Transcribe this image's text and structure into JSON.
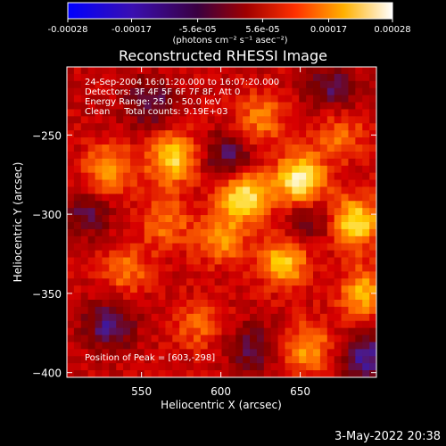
{
  "colorbar": {
    "tick_values": [
      -0.00028,
      -0.00017,
      -5.6e-05,
      5.6e-05,
      0.00017,
      0.00028
    ],
    "tick_labels": [
      "-0.00028",
      "-0.00017",
      "-5.6e-05",
      "5.6e-05",
      "0.00017",
      "0.00028"
    ],
    "unit_label": "(photons cm⁻² s⁻¹ asec⁻²)",
    "range": [
      -0.00028,
      0.00028
    ],
    "colormap": [
      "#0000ff",
      "#4a1a8c",
      "#7a0000",
      "#d80000",
      "#ff6a00",
      "#ffd200",
      "#ffffff"
    ]
  },
  "chart_data": {
    "type": "heatmap",
    "title": "Reconstructed RHESSI Image",
    "xlabel": "Heliocentric X (arcsec)",
    "ylabel": "Heliocentric Y (arcsec)",
    "xlim": [
      503,
      698
    ],
    "ylim": [
      -403,
      -207
    ],
    "x_ticks": [
      550,
      600,
      650
    ],
    "y_ticks": [
      -250,
      -300,
      -350,
      -400
    ],
    "peak_position": [
      603,
      -298
    ],
    "total_counts": 9190,
    "energy_range_kev": [
      25.0,
      50.0
    ],
    "hot_spots": [
      {
        "x": 650,
        "y": -278,
        "v": 0.00028
      },
      {
        "x": 615,
        "y": -288,
        "v": 0.00026
      },
      {
        "x": 685,
        "y": -305,
        "v": 0.00024
      },
      {
        "x": 570,
        "y": -265,
        "v": 0.00022
      },
      {
        "x": 640,
        "y": -330,
        "v": 0.0002
      },
      {
        "x": 530,
        "y": -272,
        "v": 0.00016
      },
      {
        "x": 690,
        "y": -350,
        "v": 0.00018
      },
      {
        "x": 655,
        "y": -385,
        "v": 0.00016
      },
      {
        "x": 600,
        "y": -315,
        "v": 0.00015
      },
      {
        "x": 625,
        "y": -240,
        "v": 0.00013
      },
      {
        "x": 540,
        "y": -335,
        "v": 0.00012
      },
      {
        "x": 585,
        "y": -370,
        "v": 0.0001
      },
      {
        "x": 565,
        "y": -305,
        "v": 0.00012
      },
      {
        "x": 675,
        "y": -250,
        "v": 0.00011
      }
    ],
    "cold_spots": [
      {
        "x": 605,
        "y": -265,
        "v": -0.00014
      },
      {
        "x": 530,
        "y": -370,
        "v": -0.00016
      },
      {
        "x": 690,
        "y": -390,
        "v": -0.00017
      },
      {
        "x": 555,
        "y": -230,
        "v": -0.00013
      },
      {
        "x": 670,
        "y": -220,
        "v": -0.00013
      },
      {
        "x": 620,
        "y": -385,
        "v": -0.00012
      },
      {
        "x": 515,
        "y": -300,
        "v": -0.00011
      },
      {
        "x": 655,
        "y": -305,
        "v": -0.0001
      }
    ]
  },
  "info": {
    "time_line": "24-Sep-2004 16:01:20.000 to 16:07:20.000",
    "detectors_line": "Detectors: 3F 4F 5F 6F 7F 8F, Att 0",
    "energy_line": "Energy Range: 25.0 - 50.0 keV",
    "clean_line": "Clean     Total counts: 9.19E+03",
    "peak_line": "Position of Peak = [603,-298]"
  },
  "footer": {
    "date": "3-May-2022 20:38"
  }
}
